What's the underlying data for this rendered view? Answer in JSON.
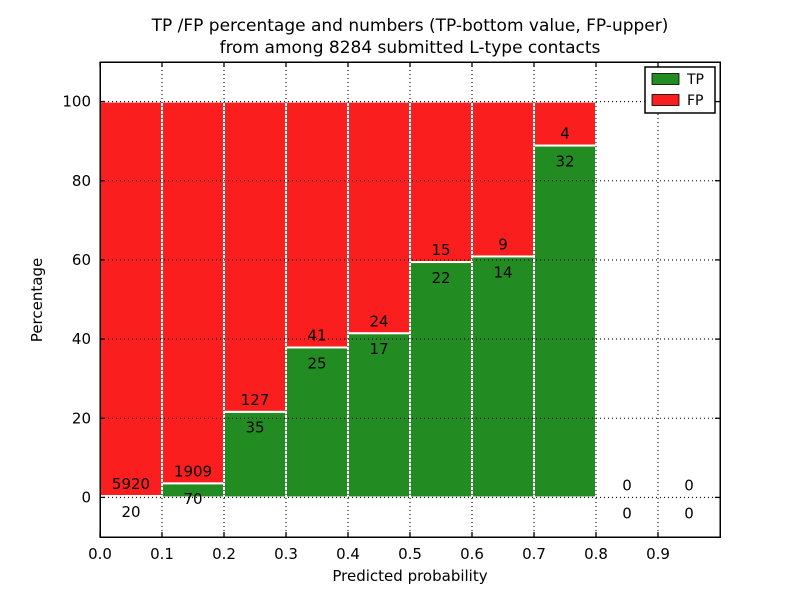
{
  "colors": {
    "tp": "#228B22",
    "fp": "#FA1E1E",
    "text": "#000000",
    "grid": "#000000",
    "bar_edge": "#ffffff",
    "background": "#ffffff"
  },
  "chart_data": {
    "type": "bar",
    "stacked": true,
    "normalized": "each bar scaled to 100 percent, TP bottom / FP top",
    "title_lines": [
      "TP /FP percentage and numbers (TP-bottom value, FP-upper)",
      "from among 8284 submitted L-type contacts"
    ],
    "xlabel": "Predicted probability",
    "ylabel": "Percentage",
    "xlim": [
      0.0,
      1.0
    ],
    "ylim": [
      -10,
      110
    ],
    "xtick_values": [
      0.0,
      0.1,
      0.2,
      0.3,
      0.4,
      0.5,
      0.6,
      0.7,
      0.8,
      0.9
    ],
    "xtick_labels": [
      "0.0",
      "0.1",
      "0.2",
      "0.3",
      "0.4",
      "0.5",
      "0.6",
      "0.7",
      "0.8",
      "0.9"
    ],
    "ytick_values": [
      0,
      20,
      40,
      60,
      80,
      100
    ],
    "ytick_labels": [
      "0",
      "20",
      "40",
      "60",
      "80",
      "100"
    ],
    "grid": true,
    "grid_style": "dotted",
    "legend_position": "upper right",
    "bin_start": 0.0,
    "bin_width": 0.1,
    "bin_count": 10,
    "categories": [
      "0.0-0.1",
      "0.1-0.2",
      "0.2-0.3",
      "0.3-0.4",
      "0.4-0.5",
      "0.5-0.6",
      "0.6-0.7",
      "0.7-0.8",
      "0.8-0.9",
      "0.9-1.0"
    ],
    "series": [
      {
        "name": "TP",
        "color": "#228B22",
        "counts": [
          20,
          70,
          35,
          25,
          17,
          22,
          14,
          32,
          0,
          0
        ]
      },
      {
        "name": "FP",
        "color": "#FA1E1E",
        "counts": [
          5920,
          1909,
          127,
          41,
          24,
          15,
          9,
          4,
          0,
          0
        ]
      }
    ],
    "tp_percent_of_bar": [
      0.34,
      3.54,
      21.6,
      37.88,
      41.46,
      59.46,
      60.87,
      88.89,
      0,
      0
    ],
    "total_contacts": 8284
  }
}
